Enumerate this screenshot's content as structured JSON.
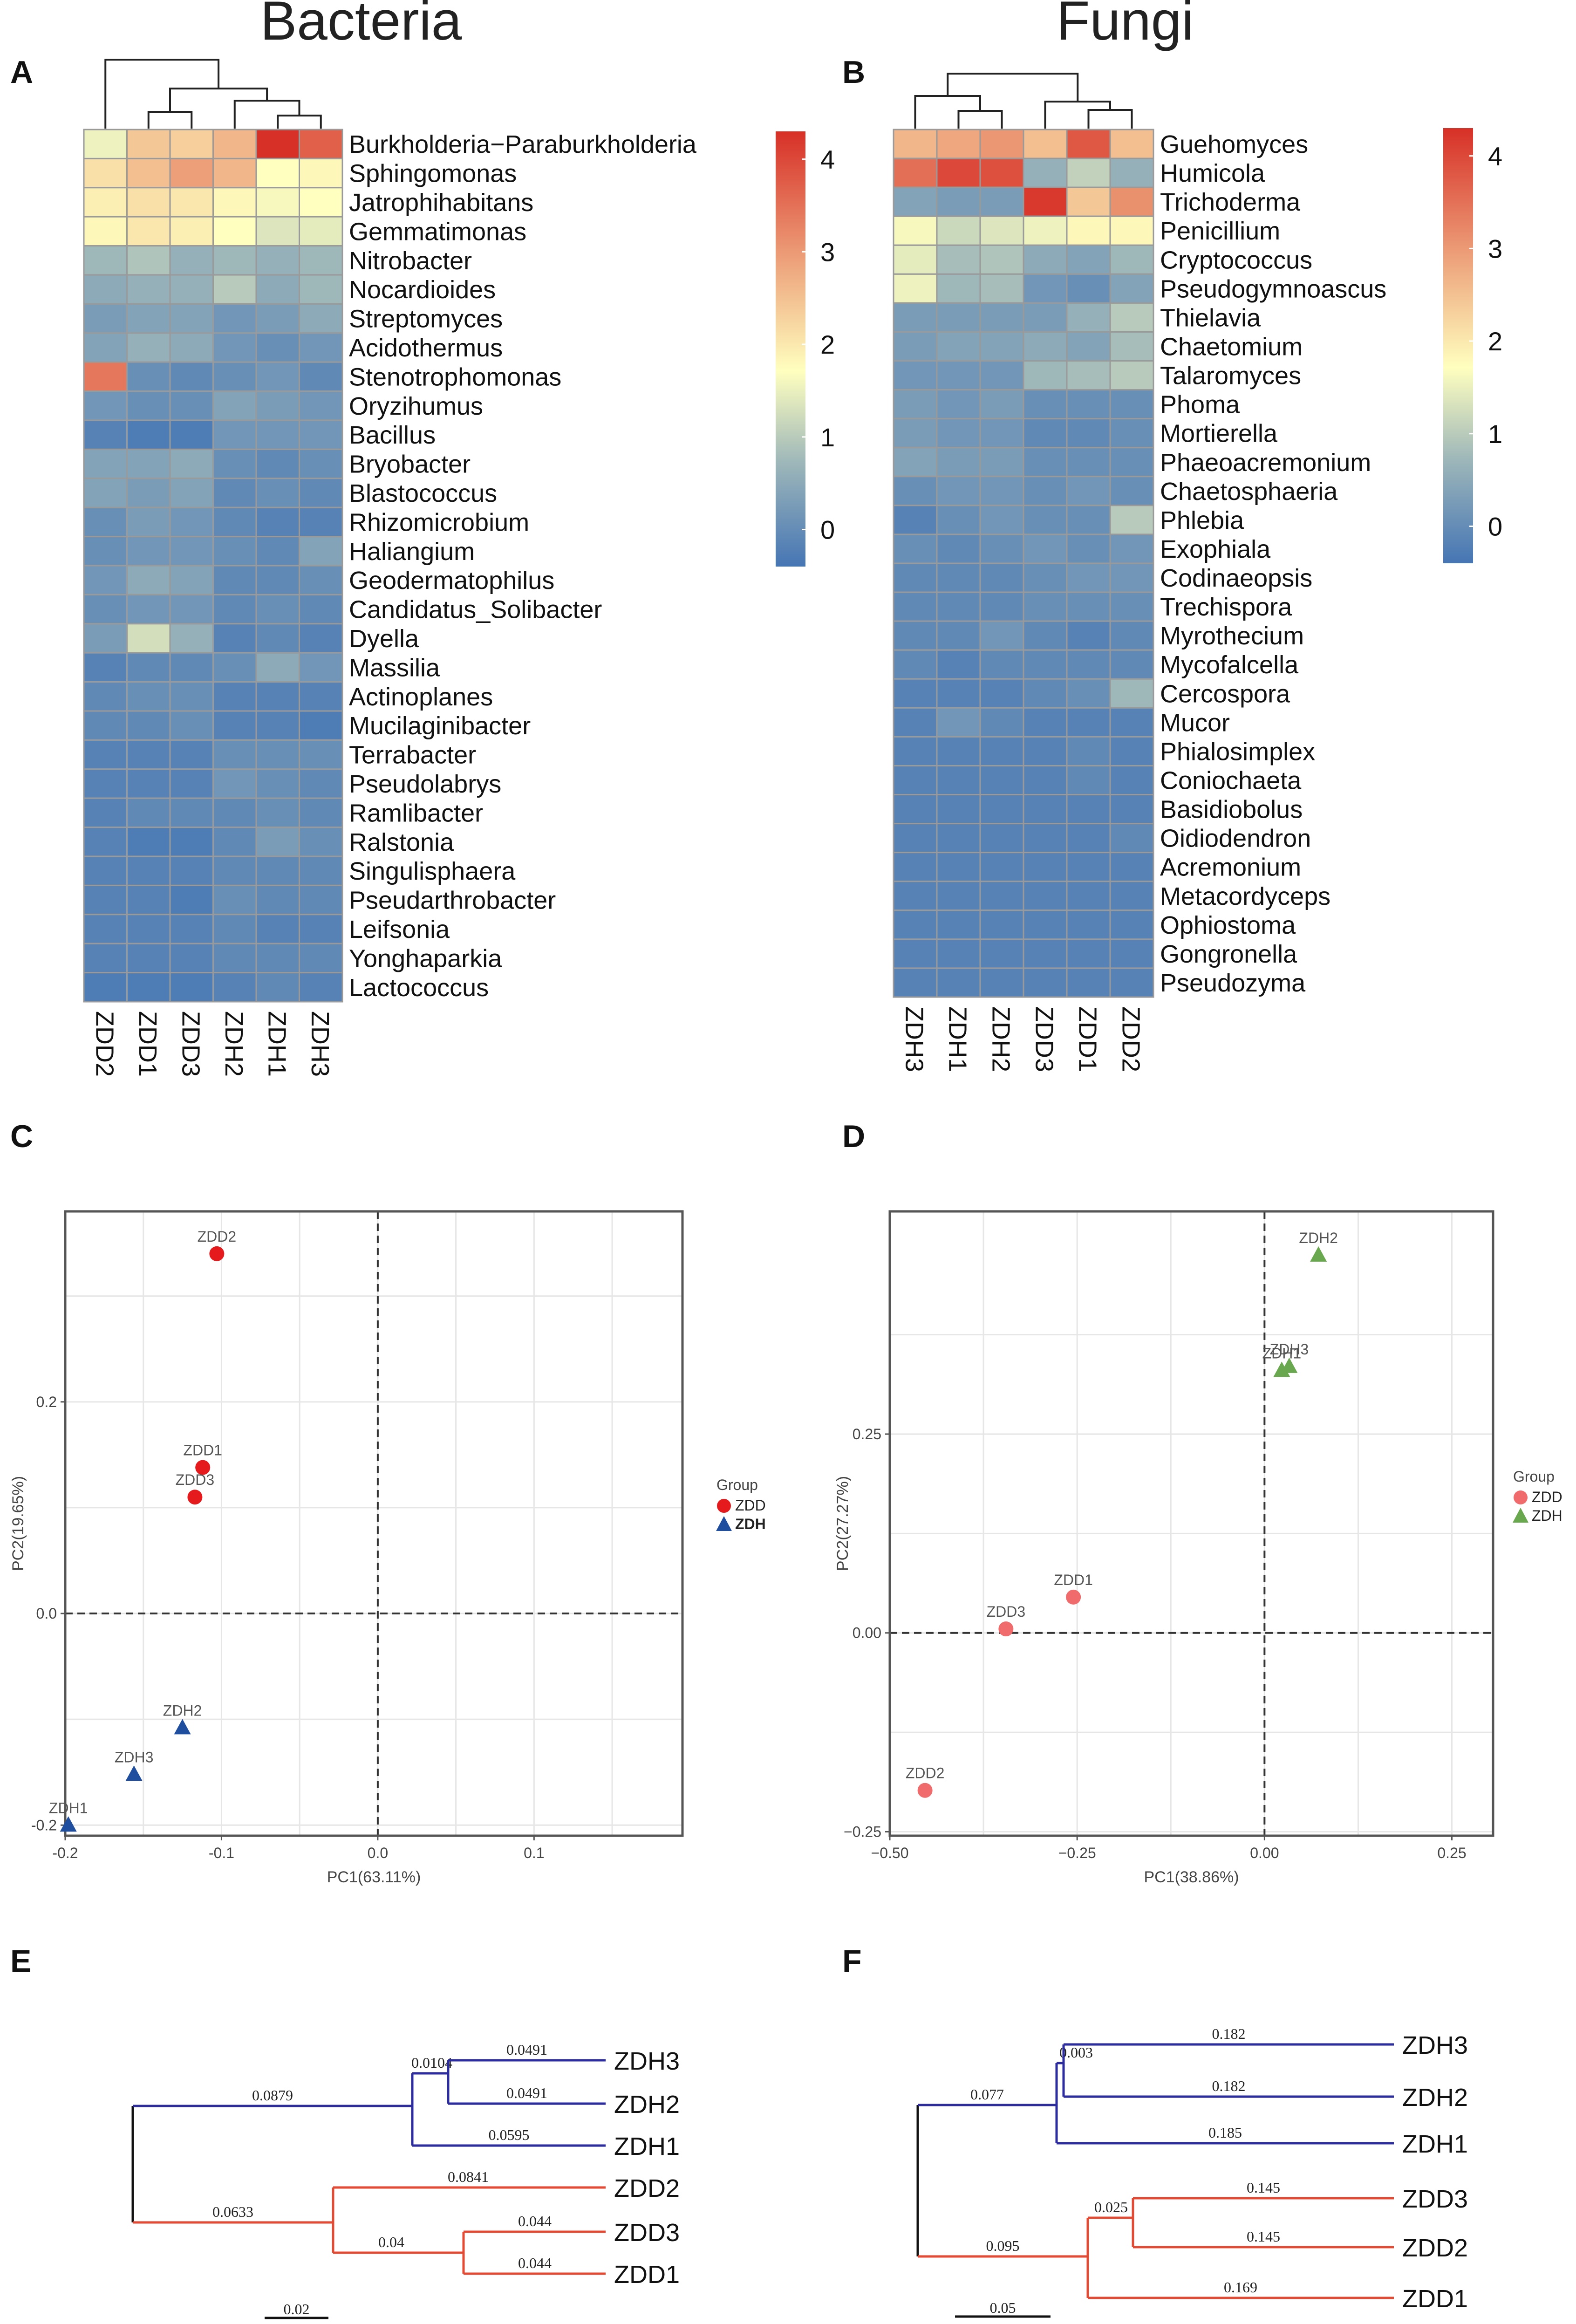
{
  "figure": {
    "title_bacteria": "Bacteria",
    "title_fungi": "Fungi",
    "panel_labels": {
      "A": "A",
      "B": "B",
      "C": "C",
      "D": "D",
      "E": "E",
      "F": "F"
    }
  },
  "colors": {
    "heat_low": "#4575b4",
    "heat_mid": "#ffffbf",
    "heat_high": "#d73027",
    "zdd_bacteria": "#e41a1c",
    "zdh_bacteria": "#1f4e9e",
    "zdd_fungi": "#f06b6b",
    "zdh_fungi": "#6aa84f",
    "tree_blue": "#2c2c9e",
    "tree_red": "#e34a33"
  },
  "chart_data": [
    {
      "panel": "A",
      "type": "heatmap",
      "columns": [
        "ZDD2",
        "ZDD1",
        "ZDD3",
        "ZDH2",
        "ZDH1",
        "ZDH3"
      ],
      "rows": [
        "Burkholderia−Paraburkholderia",
        "Sphingomonas",
        "Jatrophihabitans",
        "Gemmatimonas",
        "Nitrobacter",
        "Nocardioides",
        "Streptomyces",
        "Acidothermus",
        "Stenotrophomonas",
        "Oryzihumus",
        "Bacillus",
        "Bryobacter",
        "Blastococcus",
        "Rhizomicrobium",
        "Haliangium",
        "Geodermatophilus",
        "Candidatus_Solibacter",
        "Dyella",
        "Massilia",
        "Actinoplanes",
        "Mucilaginibacter",
        "Terrabacter",
        "Pseudolabrys",
        "Ramlibacter",
        "Ralstonia",
        "Singulisphaera",
        "Pseudarthrobacter",
        "Leifsonia",
        "Yonghaparkia",
        "Lactococcus"
      ],
      "values": [
        [
          1.5,
          2.4,
          2.3,
          2.6,
          4.3,
          3.7
        ],
        [
          2.1,
          2.5,
          2.9,
          2.6,
          1.7,
          1.8
        ],
        [
          1.9,
          2.1,
          2.0,
          1.8,
          1.6,
          1.7
        ],
        [
          1.8,
          2.0,
          1.9,
          1.7,
          1.3,
          1.4
        ],
        [
          0.6,
          0.8,
          0.5,
          0.6,
          0.5,
          0.6
        ],
        [
          0.4,
          0.5,
          0.5,
          0.9,
          0.4,
          0.6
        ],
        [
          0.2,
          0.3,
          0.3,
          0.1,
          0.2,
          0.4
        ],
        [
          0.3,
          0.5,
          0.4,
          0.1,
          0.0,
          0.1
        ],
        [
          3.4,
          0.0,
          -0.1,
          0.0,
          0.1,
          -0.1
        ],
        [
          0.1,
          0.0,
          0.0,
          0.3,
          0.2,
          0.1
        ],
        [
          -0.2,
          -0.3,
          -0.3,
          0.1,
          0.1,
          0.1
        ],
        [
          0.3,
          0.3,
          0.4,
          0.0,
          -0.1,
          0.0
        ],
        [
          0.3,
          0.2,
          0.3,
          -0.1,
          0.0,
          -0.1
        ],
        [
          0.0,
          0.2,
          0.1,
          -0.1,
          -0.2,
          -0.2
        ],
        [
          0.0,
          0.1,
          0.1,
          0.0,
          -0.1,
          0.3
        ],
        [
          0.1,
          0.4,
          0.3,
          -0.1,
          -0.1,
          0.0
        ],
        [
          0.0,
          0.1,
          0.1,
          -0.1,
          0.0,
          -0.1
        ],
        [
          0.2,
          1.2,
          0.5,
          -0.2,
          -0.1,
          -0.2
        ],
        [
          -0.2,
          -0.1,
          -0.1,
          0.0,
          0.4,
          0.1
        ],
        [
          -0.1,
          0.0,
          0.0,
          -0.2,
          -0.2,
          -0.2
        ],
        [
          -0.1,
          -0.1,
          0.0,
          -0.2,
          -0.2,
          -0.3
        ],
        [
          -0.2,
          -0.2,
          -0.2,
          0.0,
          0.0,
          0.0
        ],
        [
          -0.2,
          -0.2,
          -0.2,
          0.1,
          0.0,
          -0.1
        ],
        [
          -0.2,
          -0.1,
          -0.1,
          -0.1,
          0.0,
          -0.1
        ],
        [
          -0.2,
          -0.3,
          -0.3,
          -0.1,
          0.2,
          0.0
        ],
        [
          -0.2,
          -0.2,
          -0.2,
          -0.1,
          -0.1,
          -0.1
        ],
        [
          -0.2,
          -0.2,
          -0.3,
          0.0,
          -0.1,
          -0.1
        ],
        [
          -0.2,
          -0.2,
          -0.2,
          -0.1,
          -0.2,
          -0.2
        ],
        [
          -0.2,
          -0.2,
          -0.2,
          -0.1,
          -0.1,
          -0.1
        ],
        [
          -0.3,
          -0.3,
          -0.3,
          -0.2,
          -0.1,
          -0.2
        ]
      ],
      "legend_ticks": [
        4,
        3,
        2,
        1,
        0
      ]
    },
    {
      "panel": "B",
      "type": "heatmap",
      "columns": [
        "ZDH3",
        "ZDH1",
        "ZDH2",
        "ZDD3",
        "ZDD1",
        "ZDD2"
      ],
      "rows": [
        "Guehomyces",
        "Humicola",
        "Trichoderma",
        "Penicillium",
        "Cryptococcus",
        "Pseudogymnoascus",
        "Thielavia",
        "Chaetomium",
        "Talaromyces",
        "Phoma",
        "Mortierella",
        "Phaeoacremonium",
        "Chaetosphaeria",
        "Phlebia",
        "Exophiala",
        "Codinaeopsis",
        "Trechispora",
        "Myrothecium",
        "Mycofalcella",
        "Cercospora",
        "Mucor",
        "Phialosimplex",
        "Coniochaeta",
        "Basidiobolus",
        "Oidiodendron",
        "Acremonium",
        "Metacordyceps",
        "Ophiostoma",
        "Gongronella",
        "Pseudozyma"
      ],
      "values": [
        [
          2.6,
          2.8,
          3.0,
          2.5,
          3.8,
          2.5
        ],
        [
          3.5,
          4.0,
          3.9,
          0.5,
          1.0,
          0.5
        ],
        [
          0.3,
          0.2,
          0.2,
          4.2,
          2.4,
          3.1
        ],
        [
          1.6,
          1.1,
          1.3,
          1.5,
          1.8,
          1.8
        ],
        [
          1.4,
          0.7,
          0.8,
          0.4,
          0.3,
          0.6
        ],
        [
          1.5,
          0.6,
          0.7,
          0.1,
          0.0,
          0.3
        ],
        [
          0.2,
          0.2,
          0.2,
          0.2,
          0.5,
          0.9
        ],
        [
          0.2,
          0.3,
          0.3,
          0.4,
          0.3,
          0.7
        ],
        [
          0.1,
          0.1,
          0.1,
          0.6,
          0.7,
          0.9
        ],
        [
          0.2,
          0.1,
          0.2,
          0.0,
          0.0,
          0.0
        ],
        [
          0.2,
          0.1,
          0.1,
          -0.1,
          -0.1,
          0.0
        ],
        [
          0.3,
          0.2,
          0.2,
          0.0,
          0.0,
          0.0
        ],
        [
          0.0,
          0.1,
          0.1,
          0.0,
          0.1,
          0.0
        ],
        [
          -0.2,
          0.0,
          0.1,
          0.0,
          0.0,
          0.9
        ],
        [
          0.0,
          -0.1,
          0.0,
          0.1,
          0.0,
          0.1
        ],
        [
          -0.1,
          -0.1,
          -0.1,
          0.0,
          0.1,
          0.1
        ],
        [
          -0.1,
          -0.1,
          -0.1,
          0.0,
          0.0,
          0.0
        ],
        [
          -0.1,
          -0.1,
          0.1,
          -0.1,
          -0.2,
          -0.1
        ],
        [
          -0.1,
          -0.2,
          -0.1,
          -0.1,
          -0.1,
          -0.1
        ],
        [
          -0.2,
          -0.2,
          -0.2,
          -0.1,
          0.0,
          0.6
        ],
        [
          -0.2,
          0.1,
          -0.1,
          -0.2,
          -0.2,
          -0.2
        ],
        [
          -0.2,
          -0.2,
          -0.2,
          -0.2,
          -0.1,
          -0.2
        ],
        [
          -0.2,
          -0.2,
          -0.2,
          -0.2,
          -0.1,
          -0.2
        ],
        [
          -0.2,
          -0.2,
          -0.2,
          -0.2,
          -0.2,
          -0.2
        ],
        [
          -0.2,
          -0.2,
          -0.2,
          -0.2,
          -0.2,
          -0.1
        ],
        [
          -0.2,
          -0.2,
          -0.2,
          -0.2,
          -0.2,
          -0.2
        ],
        [
          -0.2,
          -0.2,
          -0.2,
          -0.2,
          -0.2,
          -0.2
        ],
        [
          -0.2,
          -0.2,
          -0.2,
          -0.2,
          -0.2,
          -0.2
        ],
        [
          -0.2,
          -0.2,
          -0.2,
          -0.2,
          -0.2,
          -0.2
        ],
        [
          -0.2,
          -0.2,
          -0.2,
          -0.2,
          -0.2,
          -0.2
        ]
      ],
      "legend_ticks": [
        4,
        3,
        2,
        1,
        0
      ]
    },
    {
      "panel": "C",
      "type": "scatter",
      "xlabel": "PC1(63.11%)",
      "ylabel": "PC2(19.65%)",
      "xlim": [
        -0.2,
        0.195
      ],
      "ylim": [
        -0.21,
        0.38
      ],
      "x_ticks": [
        -0.2,
        -0.1,
        0.0,
        0.1
      ],
      "x_tick_labels": [
        "-0.2",
        "-0.1",
        "0.0",
        "0.1"
      ],
      "y_ticks": [
        -0.2,
        0.0,
        0.2
      ],
      "y_tick_labels": [
        "-0.2",
        "0.0",
        "0.2"
      ],
      "legend_title": "Group",
      "series": [
        {
          "name": "ZDD",
          "marker": "circle",
          "points": [
            {
              "label": "ZDD2",
              "x": -0.103,
              "y": 0.34
            },
            {
              "label": "ZDD1",
              "x": -0.112,
              "y": 0.138
            },
            {
              "label": "ZDD3",
              "x": -0.117,
              "y": 0.11
            }
          ]
        },
        {
          "name": "ZDH",
          "marker": "triangle",
          "points": [
            {
              "label": "ZDH2",
              "x": -0.125,
              "y": -0.108
            },
            {
              "label": "ZDH3",
              "x": -0.156,
              "y": -0.152
            },
            {
              "label": "ZDH1",
              "x": -0.198,
              "y": -0.2
            }
          ]
        }
      ]
    },
    {
      "panel": "D",
      "type": "scatter",
      "xlabel": "PC1(38.86%)",
      "ylabel": "PC2(27.27%)",
      "xlim": [
        -0.5,
        0.305
      ],
      "ylim": [
        -0.255,
        0.53
      ],
      "x_ticks": [
        -0.5,
        -0.25,
        0.0,
        0.25
      ],
      "x_tick_labels": [
        "−0.50",
        "−0.25",
        "0.00",
        "0.25"
      ],
      "y_ticks": [
        -0.25,
        0.0,
        0.25
      ],
      "y_tick_labels": [
        "−0.25",
        "0.00",
        "0.25"
      ],
      "legend_title": "Group",
      "series": [
        {
          "name": "ZDD",
          "marker": "circle",
          "points": [
            {
              "label": "ZDD1",
              "x": -0.255,
              "y": 0.045
            },
            {
              "label": "ZDD3",
              "x": -0.345,
              "y": 0.005
            },
            {
              "label": "ZDD2",
              "x": -0.453,
              "y": -0.198
            }
          ]
        },
        {
          "name": "ZDH",
          "marker": "triangle",
          "points": [
            {
              "label": "ZDH2",
              "x": 0.072,
              "y": 0.475
            },
            {
              "label": "ZDH3",
              "x": 0.033,
              "y": 0.335
            },
            {
              "label": "ZDH1",
              "x": 0.023,
              "y": 0.33
            }
          ]
        }
      ]
    },
    {
      "panel": "E",
      "type": "dendrogram",
      "leaves": [
        "ZDH3",
        "ZDH2",
        "ZDH1",
        "ZDD2",
        "ZDD3",
        "ZDD1"
      ],
      "branches": [
        {
          "group": "ZDH",
          "length_label": "0.0879"
        },
        {
          "group": "ZDH-a",
          "length_label": "0.0104"
        },
        {
          "leaf": "ZDH3",
          "length_label": "0.0491"
        },
        {
          "leaf": "ZDH2",
          "length_label": "0.0491"
        },
        {
          "leaf": "ZDH1",
          "length_label": "0.0595"
        },
        {
          "group": "ZDD",
          "length_label": "0.0633"
        },
        {
          "leaf": "ZDD2",
          "length_label": "0.0841"
        },
        {
          "group": "ZDD-a",
          "length_label": "0.04"
        },
        {
          "leaf": "ZDD3",
          "length_label": "0.044"
        },
        {
          "leaf": "ZDD1",
          "length_label": "0.044"
        }
      ],
      "scale_label": "0.02"
    },
    {
      "panel": "F",
      "type": "dendrogram",
      "leaves": [
        "ZDH3",
        "ZDH2",
        "ZDH1",
        "ZDD3",
        "ZDD2",
        "ZDD1"
      ],
      "branches": [
        {
          "group": "ZDH",
          "length_label": "0.077"
        },
        {
          "group": "ZDH-a",
          "length_label": "0.003"
        },
        {
          "leaf": "ZDH3",
          "length_label": "0.182"
        },
        {
          "leaf": "ZDH2",
          "length_label": "0.182"
        },
        {
          "leaf": "ZDH1",
          "length_label": "0.185"
        },
        {
          "group": "ZDD",
          "length_label": "0.095"
        },
        {
          "group": "ZDD-a",
          "length_label": "0.025"
        },
        {
          "leaf": "ZDD3",
          "length_label": "0.145"
        },
        {
          "leaf": "ZDD2",
          "length_label": "0.145"
        },
        {
          "leaf": "ZDD1",
          "length_label": "0.169"
        }
      ],
      "scale_label": "0.05"
    }
  ]
}
